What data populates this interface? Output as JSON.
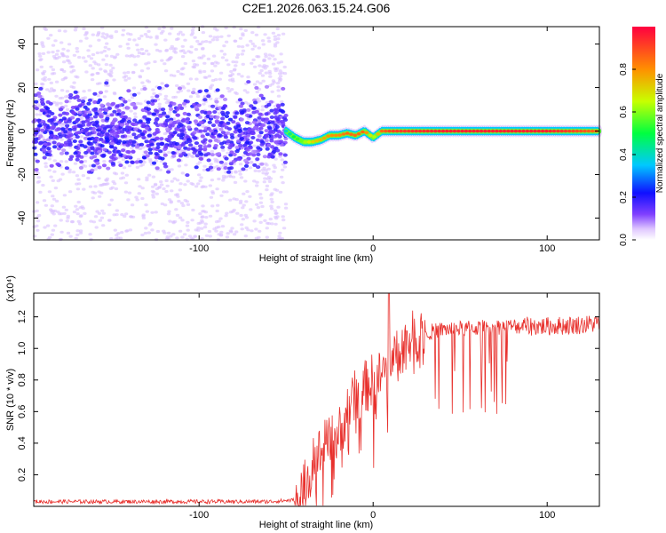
{
  "chart_data": [
    {
      "type": "scatter",
      "title": "C2E1.2026.063.15.24.G06",
      "xlabel": "Height of straight line (km)",
      "ylabel": "Frequency (Hz)",
      "xlim": [
        -195,
        130
      ],
      "ylim": [
        -50,
        48
      ],
      "xticks": [
        -100,
        0,
        100
      ],
      "xtick_labels": [
        "-100",
        "0",
        "100"
      ],
      "yticks": [
        -40,
        -20,
        0,
        20,
        40
      ],
      "ytick_labels": [
        "-40",
        "-20",
        "0",
        "20",
        "40"
      ],
      "colorbar": {
        "label": "Normalized spectral amplitude",
        "range": [
          0,
          1
        ],
        "ticks": [
          0.0,
          0.2,
          0.4,
          0.6,
          0.8
        ],
        "tick_labels": [
          "0.0",
          "0.2",
          "0.4",
          "0.6",
          "0.8"
        ],
        "colors": [
          "#ffffff",
          "#b088ff",
          "#5000ff",
          "#0000ff",
          "#00c8ff",
          "#00ff60",
          "#c8ff00",
          "#ffd000",
          "#ff7000",
          "#ff0040"
        ]
      },
      "series": [
        {
          "name": "Frequency trace",
          "x": [
            -50,
            -45,
            -40,
            -35,
            -30,
            -25,
            -20,
            -15,
            -10,
            -5,
            0,
            5,
            10,
            20,
            40,
            60,
            80,
            100,
            115,
            130
          ],
          "y": [
            0,
            -3,
            -5,
            -5,
            -4,
            -2,
            -2,
            -1,
            -2,
            0,
            -3,
            0,
            0,
            0,
            0,
            0,
            0,
            0,
            0,
            0
          ],
          "amplitude": [
            0.4,
            0.5,
            0.6,
            0.7,
            0.75,
            0.8,
            0.8,
            0.85,
            0.85,
            0.85,
            0.6,
            0.85,
            0.9,
            0.92,
            0.95,
            0.95,
            0.95,
            0.95,
            0.9,
            0.85
          ]
        }
      ],
      "noise_region_x": [
        -195,
        -50
      ]
    },
    {
      "type": "line",
      "xlabel": "Height of straight line (km)",
      "ylabel": "SNR (10 * v/v)",
      "scale_label": "(x10⁴)",
      "xlim": [
        -195,
        130
      ],
      "ylim": [
        0,
        1.35
      ],
      "xticks": [
        -100,
        0,
        100
      ],
      "xtick_labels": [
        "-100",
        "0",
        "100"
      ],
      "yticks": [
        0.2,
        0.4,
        0.6,
        0.8,
        1.0,
        1.2
      ],
      "ytick_labels": [
        "0.2",
        "0.4",
        "0.6",
        "0.8",
        "1.0",
        "1.2"
      ],
      "series": [
        {
          "name": "SNR",
          "color": "#e8302c",
          "x": [
            -195,
            -150,
            -100,
            -60,
            -45,
            -40,
            -35,
            -30,
            -25,
            -20,
            -15,
            -10,
            -5,
            0,
            5,
            10,
            15,
            20,
            25,
            30,
            40,
            60,
            80,
            100,
            120,
            130
          ],
          "y": [
            0.03,
            0.03,
            0.03,
            0.03,
            0.04,
            0.1,
            0.25,
            0.35,
            0.4,
            0.45,
            0.6,
            0.7,
            0.75,
            0.8,
            0.82,
            0.95,
            1.0,
            1.05,
            1.08,
            1.1,
            1.12,
            1.13,
            1.14,
            1.14,
            1.15,
            1.16
          ],
          "peak": {
            "x": 9,
            "y": 1.35
          }
        }
      ]
    }
  ]
}
